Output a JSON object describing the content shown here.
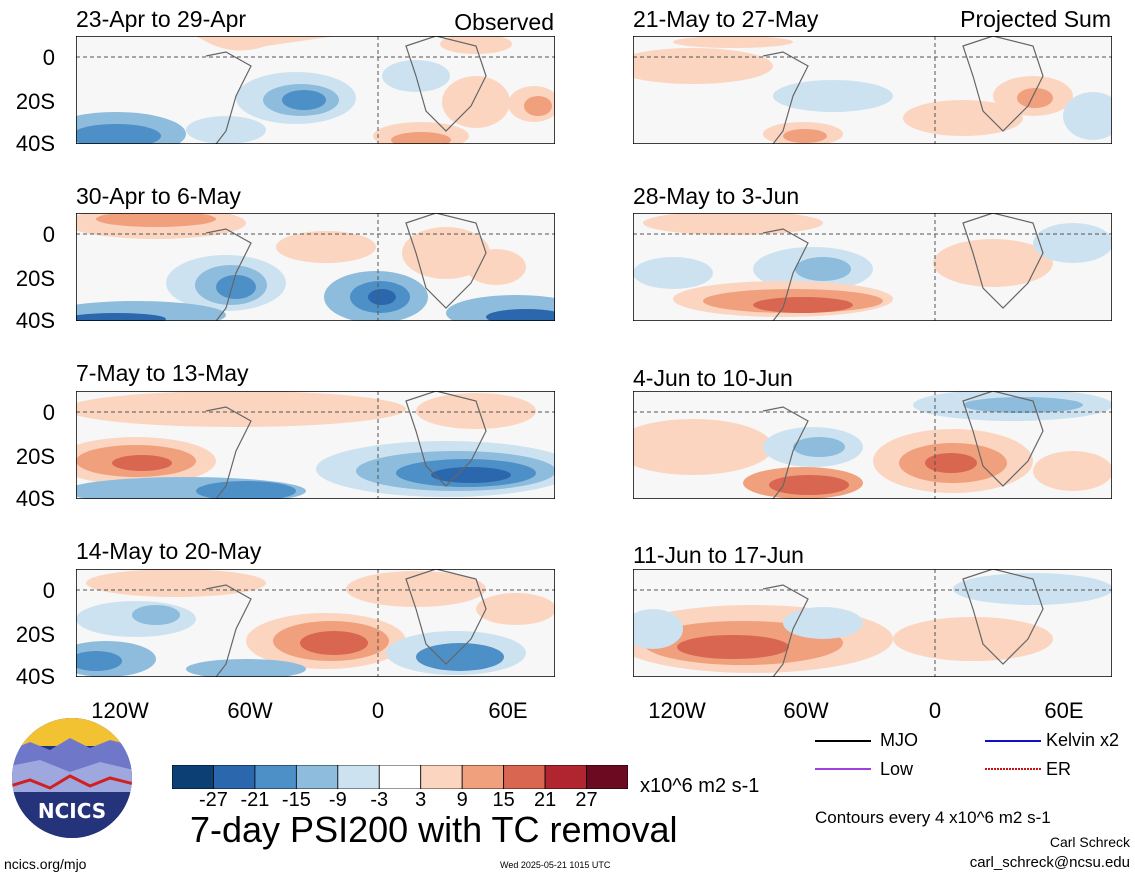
{
  "panels": [
    {
      "period": "23-Apr to 29-Apr",
      "tag": "Observed"
    },
    {
      "period": "30-Apr to 6-May",
      "tag": ""
    },
    {
      "period": "7-May to 13-May",
      "tag": ""
    },
    {
      "period": "14-May to 20-May",
      "tag": ""
    },
    {
      "period": "21-May to 27-May",
      "tag": "Projected Sum"
    },
    {
      "period": "28-May to 3-Jun",
      "tag": ""
    },
    {
      "period": "4-Jun to 10-Jun",
      "tag": ""
    },
    {
      "period": "11-Jun to 17-Jun",
      "tag": ""
    }
  ],
  "y_ticks": [
    "0",
    "20S",
    "40S"
  ],
  "x_ticks": [
    "120W",
    "60W",
    "0",
    "60E"
  ],
  "colorbar": {
    "levels": [
      "-27",
      "-21",
      "-15",
      "-9",
      "-3",
      "3",
      "9",
      "15",
      "21",
      "27"
    ],
    "colors": [
      "#0c3f73",
      "#2b67ad",
      "#4d8fc7",
      "#8dbcdd",
      "#cde2f0",
      "#ffffff",
      "#fcd5c0",
      "#f0a07d",
      "#d86650",
      "#b12530",
      "#6b0a20"
    ],
    "units": "x10^6 m2 s-1"
  },
  "title": "7-day PSI200 with TC removal",
  "legend": [
    {
      "label": "MJO",
      "color": "#000000"
    },
    {
      "label": "Kelvin x2",
      "color": "#1010c0"
    },
    {
      "label": "Low",
      "color": "#a040e0"
    },
    {
      "label": "ER",
      "color": "#d01010"
    }
  ],
  "contour_note": "Contours every 4 x10^6 m2 s-1",
  "author": "Carl Schreck",
  "email": "carl_schreck@ncsu.edu",
  "site": "ncics.org/mjo",
  "timestamp": "Wed 2025-05-21 1015 UTC",
  "logo_text": "NCICS"
}
